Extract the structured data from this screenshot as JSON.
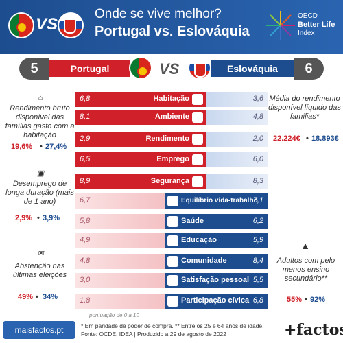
{
  "header": {
    "title_line1": "Onde se vive melhor?",
    "title_line2": "Portugal vs. Eslováquia",
    "vs": "VS",
    "brand_line1": "OECD",
    "brand_line2": "Better Life",
    "brand_line3": "Index"
  },
  "countries": {
    "left": {
      "name": "Portugal",
      "score": "5"
    },
    "right": {
      "name": "Eslováquia",
      "score": "6"
    },
    "vs": "VS"
  },
  "colors": {
    "red": "#d0212a",
    "blue": "#1d4d8f",
    "light_red": "#f4c1c4",
    "light_blue": "#c9d8ef"
  },
  "rows": [
    {
      "label": "Habitação",
      "left": "6,8",
      "right": "3,6",
      "left_value": 6.8,
      "right_value": 3.6,
      "winner": "left",
      "icon": "house-icon"
    },
    {
      "label": "Ambiente",
      "left": "8,1",
      "right": "4,8",
      "left_value": 8.1,
      "right_value": 4.8,
      "winner": "left",
      "icon": "tree-icon"
    },
    {
      "label": "Rendimento",
      "left": "2,9",
      "right": "2,0",
      "left_value": 2.9,
      "right_value": 2.0,
      "winner": "left",
      "icon": "money-icon"
    },
    {
      "label": "Emprego",
      "left": "6,5",
      "right": "6,0",
      "left_value": 6.5,
      "right_value": 6.0,
      "winner": "left",
      "icon": "briefcase-icon"
    },
    {
      "label": "Segurança",
      "left": "8,9",
      "right": "8,3",
      "left_value": 8.9,
      "right_value": 8.3,
      "winner": "left",
      "icon": "guard-icon"
    },
    {
      "label": "Equilíbrio vida-trabalho",
      "left": "6,7",
      "right": "7,1",
      "left_value": 6.7,
      "right_value": 7.1,
      "winner": "right",
      "icon": "balance-icon"
    },
    {
      "label": "Saúde",
      "left": "5,8",
      "right": "6,2",
      "left_value": 5.8,
      "right_value": 6.2,
      "winner": "right",
      "icon": "health-icon"
    },
    {
      "label": "Educação",
      "left": "4,9",
      "right": "5,9",
      "left_value": 4.9,
      "right_value": 5.9,
      "winner": "right",
      "icon": "books-icon"
    },
    {
      "label": "Comunidade",
      "left": "4,8",
      "right": "8,4",
      "left_value": 4.8,
      "right_value": 8.4,
      "winner": "right",
      "icon": "community-icon"
    },
    {
      "label": "Satisfação pessoal",
      "left": "3,0",
      "right": "5,5",
      "left_value": 3.0,
      "right_value": 5.5,
      "winner": "right",
      "icon": "person-icon"
    },
    {
      "label": "Participação cívica",
      "left": "1,8",
      "right": "6,8",
      "left_value": 1.8,
      "right_value": 6.8,
      "winner": "right",
      "icon": "ballot-icon"
    }
  ],
  "annotations": {
    "housing": {
      "text": "Rendimento bruto disponível das famílias gasto com a habitação",
      "pt": "19,6%",
      "sk": "27,4%"
    },
    "unemployment": {
      "text": "Desemprego de longa duração (mais de 1 ano)",
      "pt": "2,9%",
      "sk": "3,9%"
    },
    "abstention": {
      "text": "Abstenção nas últimas eleições",
      "pt": "49%",
      "sk": "34%"
    },
    "income": {
      "text": "Média do rendimento disponível líquido das famílias*",
      "pt": "22.224€",
      "sk": "18.893€"
    },
    "education": {
      "text": "Adultos com pelo menos ensino secundário**",
      "pt": "55%",
      "sk": "92%"
    },
    "separator": "•"
  },
  "scale_note": "pontuação de 0 a 10",
  "footer": {
    "site": "maisfactos.pt",
    "note1": "* Em paridade de poder de compra. ** Entre os 25 e 64 anos de idade.",
    "note2": "Fonte: OCDE, IDEA | Produzido a 29 de agosto de 2022",
    "brand": "+factos"
  }
}
